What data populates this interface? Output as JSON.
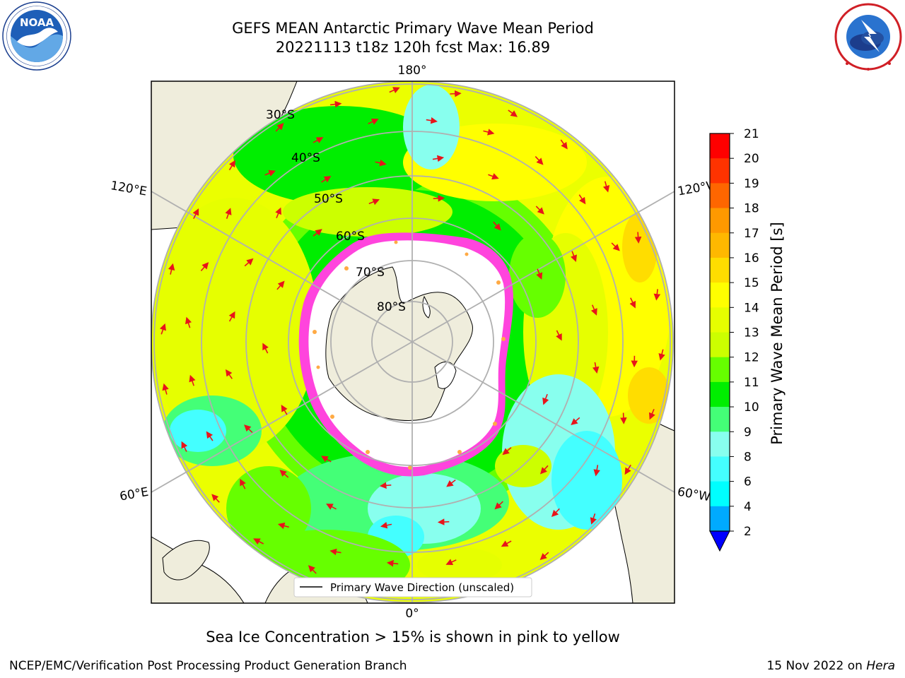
{
  "title": {
    "line1": "GEFS MEAN Antarctic Primary Wave Mean Period",
    "line2": "20221113 t18z 120h fcst   Max: 16.89"
  },
  "logos": {
    "left": "NOAA",
    "left_ring_text": "NATIONAL OCEANIC AND ATMOSPHERIC ADMINISTRATION · U.S. DEPARTMENT OF COMMERCE",
    "right_ring_text": "NATIONAL WEATHER SERVICE"
  },
  "map": {
    "projection": "south polar stereographic",
    "longitude_labels": [
      "180°",
      "120°E",
      "120°W",
      "60°E",
      "60°W",
      "0°"
    ],
    "latitude_labels": [
      "30°S",
      "40°S",
      "50°S",
      "60°S",
      "70°S",
      "80°S"
    ],
    "legend_label": "Primary Wave Direction (unscaled)",
    "arrow_color": "#e8141a",
    "land_color": "#efeddc",
    "sea_ice_color": "#ff44dd"
  },
  "colorbar": {
    "label": "Primary Wave Mean Period [s]",
    "ticks": [
      "21",
      "20",
      "19",
      "18",
      "17",
      "16",
      "15",
      "14",
      "13",
      "12",
      "11",
      "10",
      "9",
      "8",
      "6",
      "4",
      "2"
    ],
    "colors": [
      "#ff0000",
      "#ff3300",
      "#ff6600",
      "#ff9900",
      "#ffb800",
      "#ffdd00",
      "#ffff00",
      "#e6ff00",
      "#ccff00",
      "#66ff00",
      "#00ee00",
      "#44ff77",
      "#88ffee",
      "#44ffff",
      "#00ffff",
      "#00aaff",
      "#0055ff"
    ],
    "extend_color": "#0000ff"
  },
  "caption": "Sea Ice Concentration > 15% is shown in pink to yellow",
  "footer": {
    "left": "NCEP/EMC/Verification Post Processing Product Generation Branch",
    "date": "15 Nov 2022 on ",
    "host": "Hera"
  }
}
